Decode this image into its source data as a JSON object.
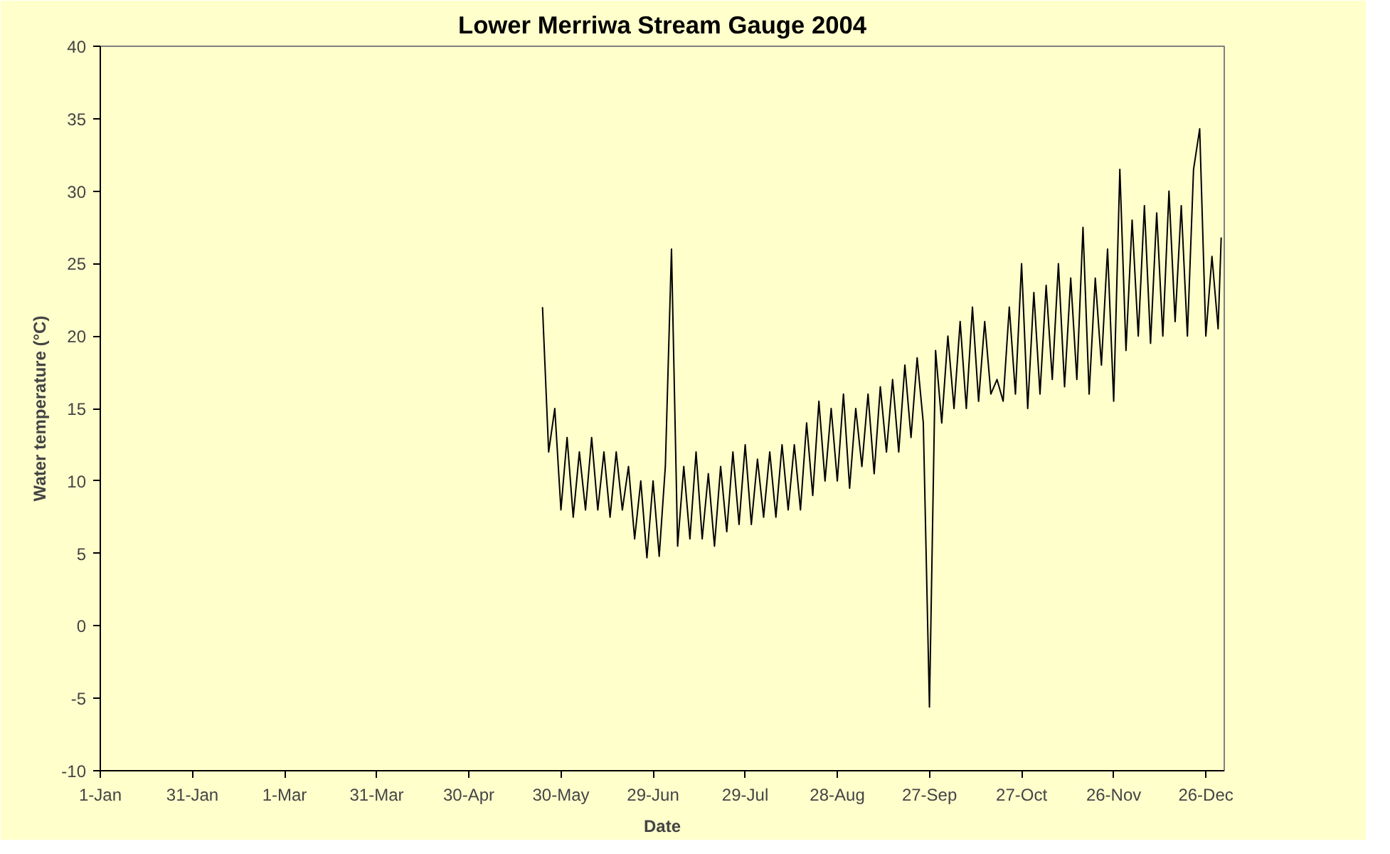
{
  "chart_data": {
    "type": "line",
    "title": "Lower Merriwa Stream Gauge 2004",
    "xlabel": "Date",
    "ylabel": "Water temperature (°C)",
    "x": [
      "2004-05-24",
      "2004-05-26",
      "2004-05-28",
      "2004-05-30",
      "2004-06-01",
      "2004-06-03",
      "2004-06-05",
      "2004-06-07",
      "2004-06-09",
      "2004-06-11",
      "2004-06-13",
      "2004-06-15",
      "2004-06-17",
      "2004-06-19",
      "2004-06-21",
      "2004-06-23",
      "2004-06-25",
      "2004-06-27",
      "2004-06-29",
      "2004-07-01",
      "2004-07-03",
      "2004-07-05",
      "2004-07-07",
      "2004-07-09",
      "2004-07-11",
      "2004-07-13",
      "2004-07-15",
      "2004-07-17",
      "2004-07-19",
      "2004-07-21",
      "2004-07-23",
      "2004-07-25",
      "2004-07-27",
      "2004-07-29",
      "2004-07-31",
      "2004-08-02",
      "2004-08-04",
      "2004-08-06",
      "2004-08-08",
      "2004-08-10",
      "2004-08-12",
      "2004-08-14",
      "2004-08-16",
      "2004-08-18",
      "2004-08-20",
      "2004-08-22",
      "2004-08-24",
      "2004-08-26",
      "2004-08-28",
      "2004-08-30",
      "2004-09-01",
      "2004-09-03",
      "2004-09-05",
      "2004-09-07",
      "2004-09-09",
      "2004-09-11",
      "2004-09-13",
      "2004-09-15",
      "2004-09-17",
      "2004-09-19",
      "2004-09-21",
      "2004-09-23",
      "2004-09-25",
      "2004-09-27",
      "2004-09-29",
      "2004-10-01",
      "2004-10-03",
      "2004-10-05",
      "2004-10-07",
      "2004-10-09",
      "2004-10-11",
      "2004-10-13",
      "2004-10-15",
      "2004-10-17",
      "2004-10-19",
      "2004-10-21",
      "2004-10-23",
      "2004-10-25",
      "2004-10-27",
      "2004-10-29",
      "2004-10-31",
      "2004-11-02",
      "2004-11-04",
      "2004-11-06",
      "2004-11-08",
      "2004-11-10",
      "2004-11-12",
      "2004-11-14",
      "2004-11-16",
      "2004-11-18",
      "2004-11-20",
      "2004-11-22",
      "2004-11-24",
      "2004-11-26",
      "2004-11-28",
      "2004-11-30",
      "2004-12-02",
      "2004-12-04",
      "2004-12-06",
      "2004-12-08",
      "2004-12-10",
      "2004-12-12",
      "2004-12-14",
      "2004-12-16",
      "2004-12-18",
      "2004-12-20",
      "2004-12-22",
      "2004-12-24",
      "2004-12-26",
      "2004-12-28",
      "2004-12-30",
      "2004-12-31"
    ],
    "series": [
      {
        "color": "#000000",
        "values": [
          22,
          12,
          15,
          8,
          13,
          7.5,
          12,
          8,
          13,
          8,
          12,
          7.5,
          12,
          8,
          11,
          6,
          10,
          4.7,
          10,
          4.8,
          11,
          26,
          5.5,
          11,
          6,
          12,
          6,
          10.5,
          5.5,
          11,
          6.5,
          12,
          7,
          12.5,
          7,
          11.5,
          7.5,
          12,
          7.5,
          12.5,
          8,
          12.5,
          8,
          14,
          9,
          15.5,
          10,
          15,
          10,
          16,
          9.5,
          15,
          11,
          16,
          10.5,
          16.5,
          12,
          17,
          12,
          18,
          13,
          18.5,
          14,
          -5.6,
          19,
          14,
          20,
          15,
          21,
          15,
          22,
          15.5,
          21,
          16,
          17,
          15.5,
          22,
          16,
          25,
          15,
          23,
          16,
          23.5,
          17,
          25,
          16.5,
          24,
          17,
          27.5,
          16,
          24,
          18,
          26,
          15.5,
          31.5,
          19,
          28,
          20,
          29,
          19.5,
          28.5,
          20,
          30,
          21,
          29,
          20,
          31.5,
          34.3,
          20,
          25.5,
          20.5,
          26.8
        ]
      }
    ],
    "xlim": [
      "2004-01-01",
      "2005-01-01"
    ],
    "xticks": [
      {
        "value": "2004-01-01",
        "label": "1-Jan"
      },
      {
        "value": "2004-01-31",
        "label": "31-Jan"
      },
      {
        "value": "2004-03-01",
        "label": "1-Mar"
      },
      {
        "value": "2004-03-31",
        "label": "31-Mar"
      },
      {
        "value": "2004-04-30",
        "label": "30-Apr"
      },
      {
        "value": "2004-05-30",
        "label": "30-May"
      },
      {
        "value": "2004-06-29",
        "label": "29-Jun"
      },
      {
        "value": "2004-07-29",
        "label": "29-Jul"
      },
      {
        "value": "2004-08-28",
        "label": "28-Aug"
      },
      {
        "value": "2004-09-27",
        "label": "27-Sep"
      },
      {
        "value": "2004-10-27",
        "label": "27-Oct"
      },
      {
        "value": "2004-11-26",
        "label": "26-Nov"
      },
      {
        "value": "2004-12-26",
        "label": "26-Dec"
      }
    ],
    "ylim": [
      -10,
      40
    ],
    "yticks": [
      -10,
      -5,
      0,
      5,
      10,
      15,
      20,
      25,
      30,
      35,
      40
    ],
    "grid": false,
    "marker": "none",
    "line_style": "solid"
  }
}
